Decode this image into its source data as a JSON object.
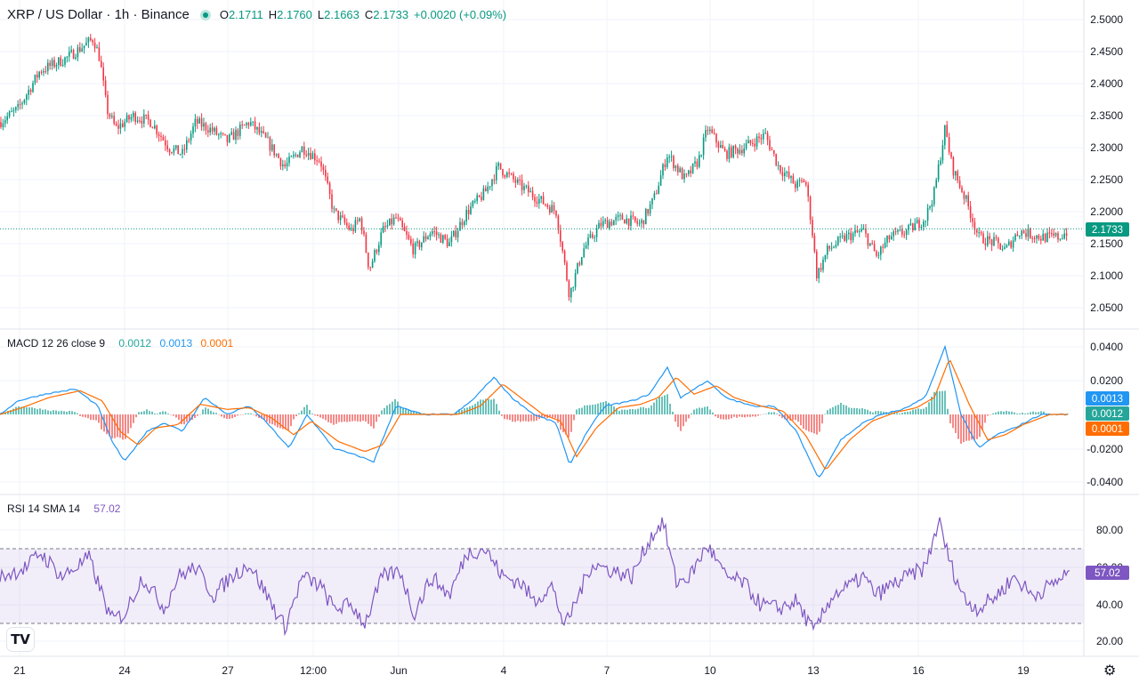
{
  "header": {
    "symbol": "XRP / US Dollar · 1h · Binance",
    "o_label": "O",
    "o_value": "2.1711",
    "h_label": "H",
    "h_value": "2.1760",
    "l_label": "L",
    "l_value": "2.1663",
    "c_label": "C",
    "c_value": "2.1733",
    "change": "+0.0020 (+0.09%)"
  },
  "macd": {
    "label": "MACD 12 26 close 9",
    "hist_value": "0.0012",
    "macd_value": "0.0013",
    "signal_value": "0.0001"
  },
  "rsi": {
    "label": "RSI 14 SMA 14",
    "value": "57.02"
  },
  "price_tag": "2.1733",
  "colors": {
    "up": "#089981",
    "down": "#f23645",
    "macd": "#2196f3",
    "signal": "#ff6d00",
    "rsi": "#7e57c2"
  },
  "icons": {
    "logo": "tradingview-logo-icon",
    "settings": "gear-icon"
  },
  "chart_data": [
    {
      "type": "candlestick",
      "title": "XRP / US Dollar · 1h · Binance",
      "x_tick_labels": [
        "21",
        "24",
        "27",
        "12:00",
        "Jun",
        "4",
        "7",
        "10",
        "13",
        "16",
        "19"
      ],
      "y_tick_labels": [
        "2.5000",
        "2.4500",
        "2.4000",
        "2.3500",
        "2.3000",
        "2.2500",
        "2.2000",
        "2.1500",
        "2.1000",
        "2.0500"
      ],
      "ylim": [
        2.03,
        2.52
      ],
      "last_price": 2.1733,
      "anchors": [
        [
          0,
          2.34
        ],
        [
          20,
          2.36
        ],
        [
          45,
          2.42
        ],
        [
          75,
          2.44
        ],
        [
          95,
          2.46
        ],
        [
          105,
          2.47
        ],
        [
          112,
          2.44
        ],
        [
          120,
          2.36
        ],
        [
          130,
          2.33
        ],
        [
          150,
          2.35
        ],
        [
          170,
          2.34
        ],
        [
          190,
          2.3
        ],
        [
          205,
          2.29
        ],
        [
          220,
          2.34
        ],
        [
          235,
          2.33
        ],
        [
          255,
          2.31
        ],
        [
          280,
          2.34
        ],
        [
          300,
          2.31
        ],
        [
          320,
          2.27
        ],
        [
          340,
          2.3
        ],
        [
          360,
          2.28
        ],
        [
          375,
          2.2
        ],
        [
          395,
          2.17
        ],
        [
          405,
          2.19
        ],
        [
          415,
          2.11
        ],
        [
          430,
          2.17
        ],
        [
          445,
          2.19
        ],
        [
          465,
          2.14
        ],
        [
          485,
          2.17
        ],
        [
          505,
          2.15
        ],
        [
          525,
          2.2
        ],
        [
          545,
          2.23
        ],
        [
          560,
          2.27
        ],
        [
          585,
          2.24
        ],
        [
          605,
          2.22
        ],
        [
          625,
          2.2
        ],
        [
          640,
          2.07
        ],
        [
          655,
          2.14
        ],
        [
          675,
          2.18
        ],
        [
          700,
          2.19
        ],
        [
          720,
          2.18
        ],
        [
          735,
          2.22
        ],
        [
          750,
          2.29
        ],
        [
          770,
          2.25
        ],
        [
          785,
          2.28
        ],
        [
          795,
          2.33
        ],
        [
          815,
          2.29
        ],
        [
          835,
          2.3
        ],
        [
          860,
          2.32
        ],
        [
          875,
          2.27
        ],
        [
          895,
          2.24
        ],
        [
          905,
          2.25
        ],
        [
          912,
          2.18
        ],
        [
          918,
          2.1
        ],
        [
          930,
          2.14
        ],
        [
          950,
          2.16
        ],
        [
          970,
          2.17
        ],
        [
          985,
          2.13
        ],
        [
          1000,
          2.16
        ],
        [
          1020,
          2.17
        ],
        [
          1040,
          2.19
        ],
        [
          1050,
          2.23
        ],
        [
          1062,
          2.33
        ],
        [
          1070,
          2.27
        ],
        [
          1085,
          2.22
        ],
        [
          1100,
          2.16
        ],
        [
          1120,
          2.15
        ],
        [
          1130,
          2.14
        ],
        [
          1145,
          2.17
        ],
        [
          1170,
          2.16
        ],
        [
          1190,
          2.16
        ],
        [
          1200,
          2.17
        ]
      ]
    },
    {
      "type": "line",
      "title": "MACD 12 26 close 9",
      "y_tick_labels": [
        "0.0400",
        "0.0200",
        "-0.0200",
        "-0.0400"
      ],
      "ylim": [
        -0.045,
        0.045
      ],
      "series": [
        {
          "name": "MACD",
          "values": [
            [
              0,
              0.0
            ],
            [
              20,
              0.008
            ],
            [
              50,
              0.012
            ],
            [
              85,
              0.015
            ],
            [
              110,
              0.005
            ],
            [
              125,
              -0.015
            ],
            [
              140,
              -0.028
            ],
            [
              165,
              -0.01
            ],
            [
              185,
              -0.005
            ],
            [
              205,
              -0.01
            ],
            [
              230,
              0.01
            ],
            [
              255,
              0.0
            ],
            [
              280,
              0.005
            ],
            [
              300,
              -0.005
            ],
            [
              325,
              -0.02
            ],
            [
              345,
              0.0
            ],
            [
              375,
              -0.02
            ],
            [
              405,
              -0.025
            ],
            [
              420,
              -0.028
            ],
            [
              445,
              0.005
            ],
            [
              475,
              0.0
            ],
            [
              510,
              0.0
            ],
            [
              530,
              0.008
            ],
            [
              555,
              0.022
            ],
            [
              575,
              0.01
            ],
            [
              600,
              0.0
            ],
            [
              625,
              -0.005
            ],
            [
              640,
              -0.03
            ],
            [
              660,
              -0.01
            ],
            [
              680,
              0.005
            ],
            [
              710,
              0.008
            ],
            [
              730,
              0.012
            ],
            [
              750,
              0.028
            ],
            [
              765,
              0.01
            ],
            [
              795,
              0.02
            ],
            [
              815,
              0.01
            ],
            [
              845,
              0.005
            ],
            [
              870,
              0.005
            ],
            [
              895,
              -0.01
            ],
            [
              920,
              -0.038
            ],
            [
              945,
              -0.015
            ],
            [
              970,
              -0.005
            ],
            [
              990,
              0.0
            ],
            [
              1015,
              0.003
            ],
            [
              1040,
              0.01
            ],
            [
              1062,
              0.04
            ],
            [
              1080,
              0.0
            ],
            [
              1100,
              -0.02
            ],
            [
              1120,
              -0.012
            ],
            [
              1140,
              -0.008
            ],
            [
              1170,
              0.0
            ],
            [
              1200,
              0.0
            ]
          ]
        },
        {
          "name": "Signal",
          "values": [
            [
              0,
              0.0
            ],
            [
              25,
              0.004
            ],
            [
              55,
              0.01
            ],
            [
              90,
              0.014
            ],
            [
              115,
              0.008
            ],
            [
              135,
              -0.01
            ],
            [
              155,
              -0.018
            ],
            [
              175,
              -0.008
            ],
            [
              200,
              -0.006
            ],
            [
              225,
              0.006
            ],
            [
              255,
              0.003
            ],
            [
              280,
              0.004
            ],
            [
              305,
              -0.002
            ],
            [
              330,
              -0.012
            ],
            [
              350,
              -0.004
            ],
            [
              380,
              -0.016
            ],
            [
              410,
              -0.022
            ],
            [
              430,
              -0.018
            ],
            [
              450,
              0.0
            ],
            [
              480,
              0.0
            ],
            [
              515,
              0.0
            ],
            [
              540,
              0.005
            ],
            [
              565,
              0.018
            ],
            [
              585,
              0.01
            ],
            [
              610,
              0.0
            ],
            [
              630,
              -0.004
            ],
            [
              648,
              -0.025
            ],
            [
              670,
              -0.008
            ],
            [
              695,
              0.004
            ],
            [
              720,
              0.006
            ],
            [
              740,
              0.01
            ],
            [
              760,
              0.022
            ],
            [
              780,
              0.012
            ],
            [
              805,
              0.017
            ],
            [
              825,
              0.01
            ],
            [
              855,
              0.005
            ],
            [
              880,
              0.002
            ],
            [
              905,
              -0.012
            ],
            [
              928,
              -0.033
            ],
            [
              955,
              -0.015
            ],
            [
              980,
              -0.004
            ],
            [
              1005,
              0.001
            ],
            [
              1030,
              0.004
            ],
            [
              1050,
              0.01
            ],
            [
              1067,
              0.033
            ],
            [
              1090,
              0.005
            ],
            [
              1110,
              -0.015
            ],
            [
              1130,
              -0.012
            ],
            [
              1150,
              -0.006
            ],
            [
              1180,
              0.0
            ],
            [
              1200,
              0.0
            ]
          ]
        }
      ]
    },
    {
      "type": "line",
      "title": "RSI 14 SMA 14",
      "y_tick_labels": [
        "80.00",
        "60.00",
        "40.00",
        "20.00"
      ],
      "ylim": [
        15,
        95
      ],
      "bands": [
        70,
        30
      ],
      "series": [
        {
          "name": "RSI",
          "values": [
            [
              0,
              55
            ],
            [
              30,
              60
            ],
            [
              45,
              68
            ],
            [
              70,
              55
            ],
            [
              100,
              65
            ],
            [
              110,
              52
            ],
            [
              125,
              32
            ],
            [
              140,
              35
            ],
            [
              160,
              55
            ],
            [
              185,
              38
            ],
            [
              200,
              55
            ],
            [
              220,
              60
            ],
            [
              240,
              45
            ],
            [
              260,
              55
            ],
            [
              280,
              62
            ],
            [
              300,
              45
            ],
            [
              320,
              28
            ],
            [
              340,
              55
            ],
            [
              360,
              50
            ],
            [
              375,
              38
            ],
            [
              395,
              40
            ],
            [
              410,
              30
            ],
            [
              430,
              55
            ],
            [
              450,
              58
            ],
            [
              465,
              35
            ],
            [
              485,
              55
            ],
            [
              505,
              45
            ],
            [
              525,
              68
            ],
            [
              545,
              70
            ],
            [
              565,
              55
            ],
            [
              585,
              52
            ],
            [
              600,
              42
            ],
            [
              620,
              50
            ],
            [
              635,
              28
            ],
            [
              650,
              45
            ],
            [
              665,
              62
            ],
            [
              690,
              58
            ],
            [
              710,
              55
            ],
            [
              730,
              75
            ],
            [
              745,
              85
            ],
            [
              760,
              52
            ],
            [
              775,
              55
            ],
            [
              795,
              72
            ],
            [
              815,
              55
            ],
            [
              835,
              52
            ],
            [
              855,
              40
            ],
            [
              875,
              38
            ],
            [
              895,
              42
            ],
            [
              915,
              25
            ],
            [
              935,
              45
            ],
            [
              955,
              50
            ],
            [
              970,
              55
            ],
            [
              985,
              45
            ],
            [
              1000,
              50
            ],
            [
              1020,
              55
            ],
            [
              1040,
              60
            ],
            [
              1055,
              85
            ],
            [
              1068,
              62
            ],
            [
              1085,
              42
            ],
            [
              1100,
              38
            ],
            [
              1120,
              45
            ],
            [
              1140,
              55
            ],
            [
              1160,
              45
            ],
            [
              1180,
              50
            ],
            [
              1200,
              57
            ]
          ]
        }
      ]
    }
  ]
}
